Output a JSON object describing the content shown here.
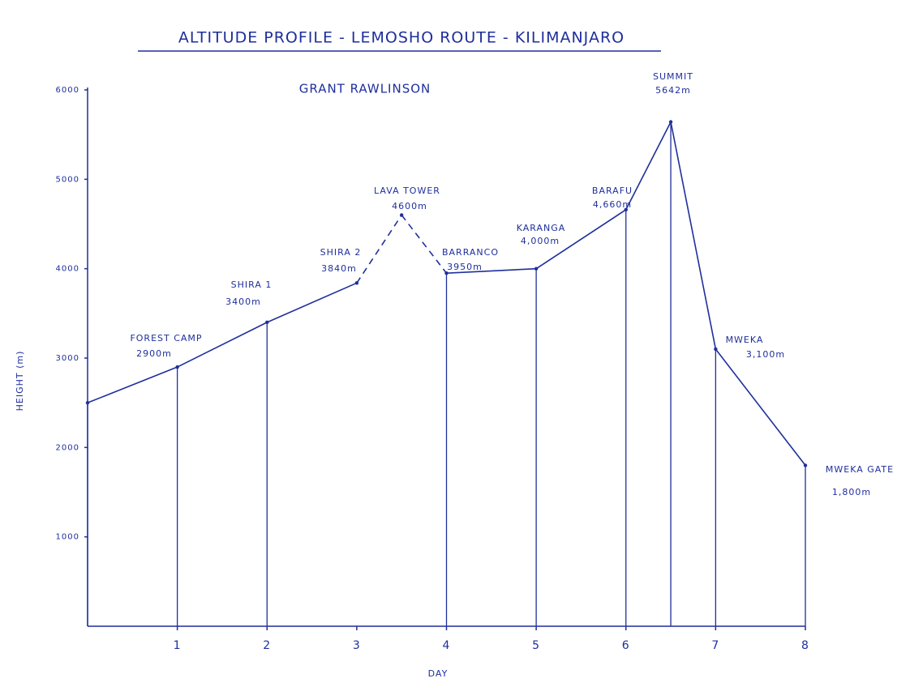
{
  "chart_data": {
    "type": "line",
    "title": "ALTITUDE PROFILE - LEMOSHO ROUTE - KILIMANJARO",
    "subtitle": "GRANT RAWLINSON",
    "x_label": "DAY",
    "y_label": "HEIGHT (m)",
    "xlim": [
      0,
      8
    ],
    "ylim": [
      0,
      6000
    ],
    "xticks": [
      1,
      2,
      3,
      4,
      5,
      6,
      7,
      8
    ],
    "yticks": [
      1000,
      2000,
      3000,
      4000,
      5000,
      6000
    ],
    "x": [
      0,
      1,
      2,
      3,
      3.5,
      4,
      5,
      6,
      6.5,
      7,
      8
    ],
    "series": [
      {
        "name": "Lemosho Route",
        "color": "#1f2f9c",
        "values": [
          2500,
          2900,
          3400,
          3840,
          4600,
          3950,
          4000,
          4660,
          5642,
          3100,
          1800
        ],
        "value_labels": [
          null,
          "2900m",
          "3400m",
          "3840m",
          "4600m",
          "3950m",
          "4,000m",
          "4,660m",
          "5642m",
          "3,100m",
          "1,800m"
        ],
        "point_labels": [
          null,
          "FOREST CAMP",
          "SHIRA 1",
          "SHIRA 2",
          "LAVA TOWER",
          "BARRANCO",
          "KARANGA",
          "BARAFU",
          "SUMMIT",
          "MWEKA",
          "MWEKA GATE"
        ],
        "segment_styles": [
          "solid",
          "solid",
          "solid",
          "dashed",
          "dashed",
          "solid",
          "solid",
          "solid",
          "solid",
          "solid"
        ],
        "drop_lines": true
      }
    ]
  }
}
